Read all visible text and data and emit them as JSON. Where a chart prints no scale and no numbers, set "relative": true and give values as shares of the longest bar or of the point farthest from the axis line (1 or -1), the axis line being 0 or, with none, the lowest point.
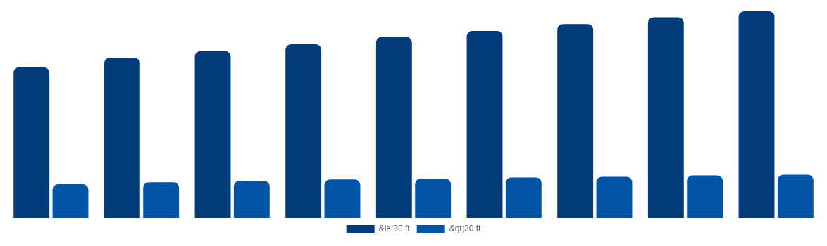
{
  "chart_data": {
    "type": "bar",
    "relative": true,
    "categories": [
      null,
      null,
      null,
      null,
      null,
      null,
      null,
      null,
      null
    ],
    "series": [
      {
        "name": "&le;30 ft",
        "color": "#033c79",
        "values": [
          0.729,
          0.775,
          0.807,
          0.84,
          0.876,
          0.905,
          0.938,
          0.971,
          1
        ]
      },
      {
        "name": "&gt;30 ft",
        "color": "#0154a6",
        "values": [
          0.163,
          0.173,
          0.18,
          0.186,
          0.19,
          0.196,
          0.199,
          0.206,
          0.209
        ]
      }
    ],
    "legend": "bottom",
    "grid": false
  }
}
